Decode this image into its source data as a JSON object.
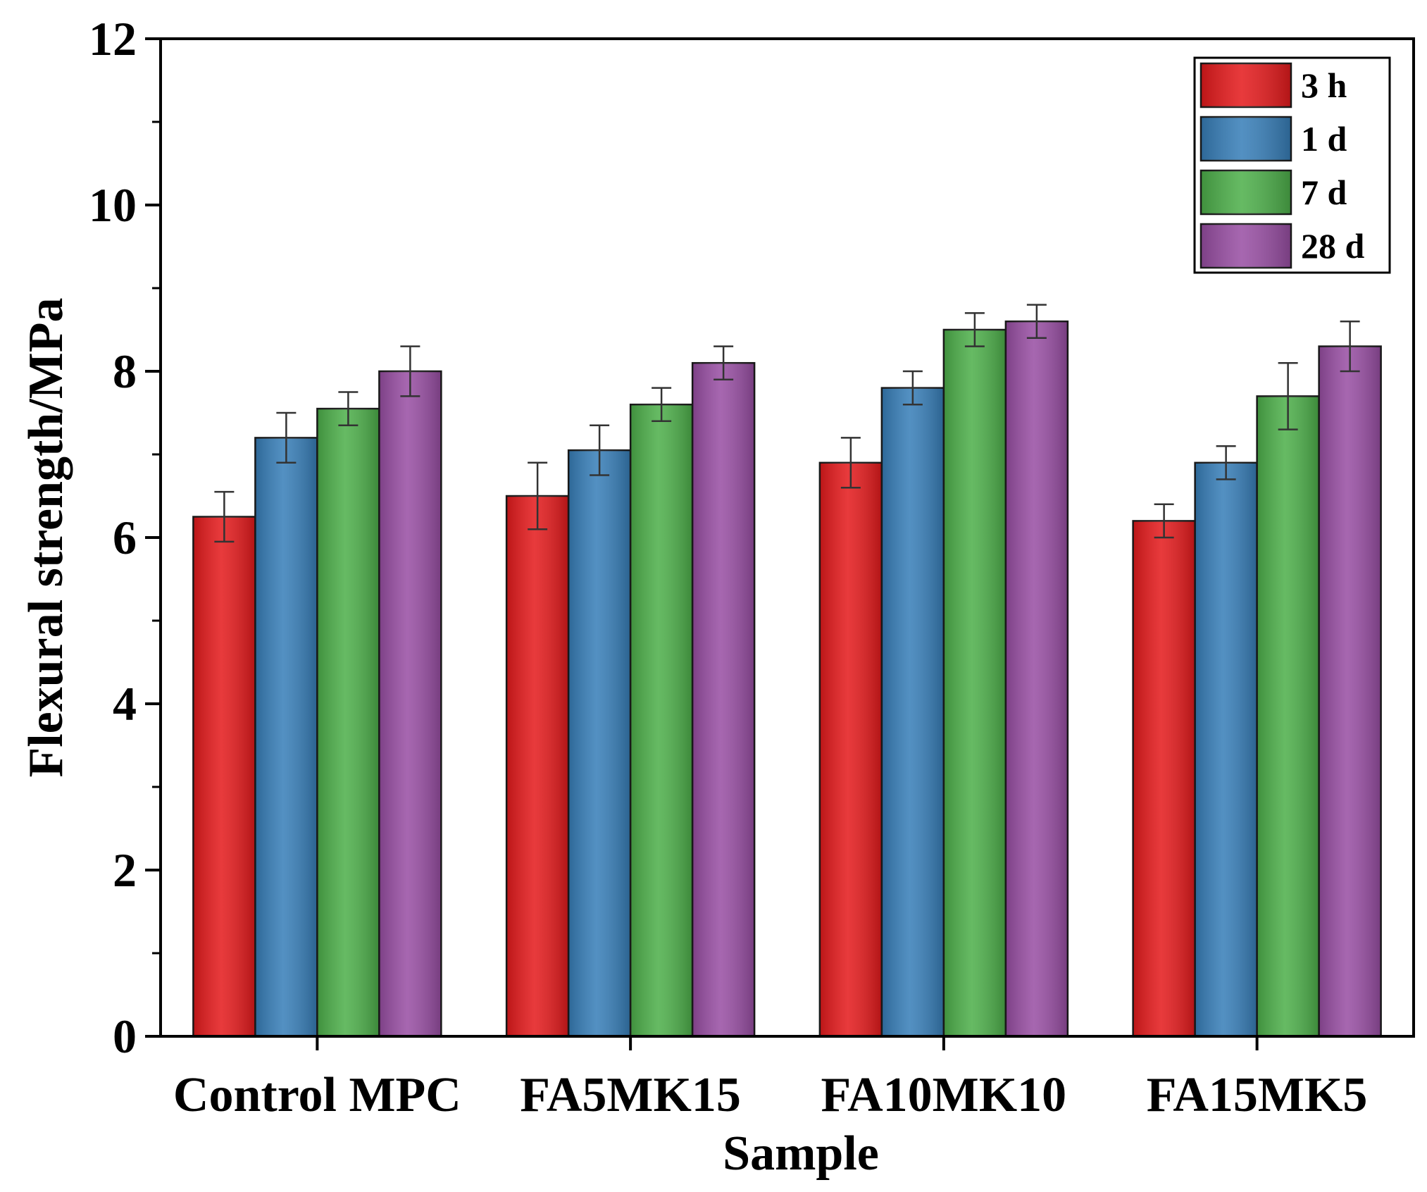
{
  "chart_data": {
    "type": "bar",
    "title": "",
    "xlabel": "Sample",
    "ylabel": "Flexural strength/MPa",
    "ylim": [
      0,
      12
    ],
    "yticks": [
      0,
      2,
      4,
      6,
      8,
      10,
      12
    ],
    "grid": false,
    "legend_position": "top-right",
    "categories": [
      "Control MPC",
      "FA5MK15",
      "FA10MK10",
      "FA15MK5"
    ],
    "series": [
      {
        "name": "3 h",
        "color": "#e41a1c",
        "values": [
          6.25,
          6.5,
          6.9,
          6.2
        ],
        "errors": [
          0.3,
          0.4,
          0.3,
          0.2
        ]
      },
      {
        "name": "1 d",
        "color": "#377eb8",
        "values": [
          7.2,
          7.05,
          7.8,
          6.9
        ],
        "errors": [
          0.3,
          0.3,
          0.2,
          0.2
        ]
      },
      {
        "name": "7 d",
        "color": "#4daf4a",
        "values": [
          7.55,
          7.6,
          8.5,
          7.7
        ],
        "errors": [
          0.2,
          0.2,
          0.2,
          0.4
        ]
      },
      {
        "name": "28 d",
        "color": "#984ea3",
        "values": [
          8.0,
          8.1,
          8.6,
          8.3
        ],
        "errors": [
          0.3,
          0.2,
          0.2,
          0.3
        ]
      }
    ]
  }
}
